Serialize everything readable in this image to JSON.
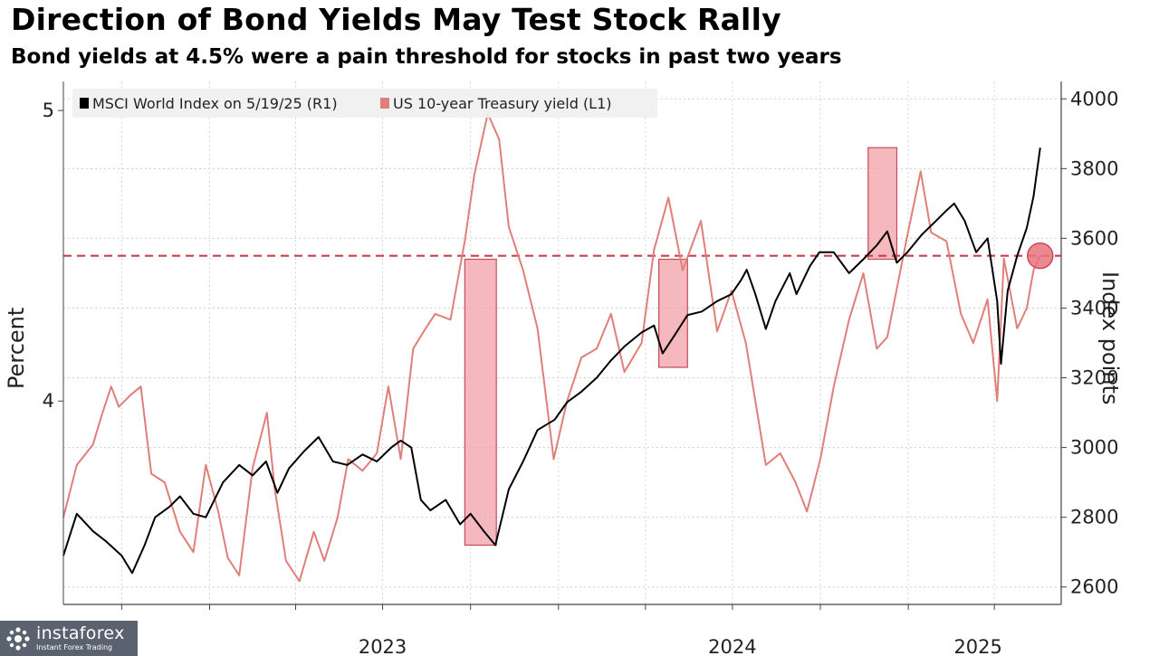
{
  "chart_data": {
    "type": "line",
    "title": "Direction of Bond Yields May Test Stock Rally",
    "subtitle": "Bond yields at 4.5% were a pain threshold for stocks in past two years",
    "ylabel_left": "Percent",
    "ylabel_right": "Index points",
    "x_tick_labels": [
      "2023",
      "2024",
      "2025"
    ],
    "left_axis": {
      "ylim": [
        3.3,
        5.1
      ],
      "ticks": [
        4,
        5
      ]
    },
    "right_axis": {
      "ylim": [
        2550,
        4050
      ],
      "ticks": [
        2600,
        2800,
        3000,
        3200,
        3400,
        3600,
        3800,
        4000
      ]
    },
    "xlim": [
      "2022-08-01",
      "2025-06-10"
    ],
    "threshold": {
      "value": 4.5,
      "axis": "left",
      "style": "dashed",
      "color": "#c8404a"
    },
    "legend_position": "top-left",
    "grid": true,
    "series": [
      {
        "name": "MSCI World Index on 5/19/25 (R1)",
        "axis": "right",
        "color": "#000000",
        "points": [
          [
            "2022-08-01",
            2690
          ],
          [
            "2022-08-15",
            2810
          ],
          [
            "2022-09-01",
            2760
          ],
          [
            "2022-09-15",
            2730
          ],
          [
            "2022-10-01",
            2690
          ],
          [
            "2022-10-12",
            2640
          ],
          [
            "2022-10-25",
            2720
          ],
          [
            "2022-11-05",
            2800
          ],
          [
            "2022-11-20",
            2830
          ],
          [
            "2022-12-01",
            2860
          ],
          [
            "2022-12-15",
            2810
          ],
          [
            "2022-12-28",
            2800
          ],
          [
            "2023-01-15",
            2900
          ],
          [
            "2023-02-01",
            2950
          ],
          [
            "2023-02-15",
            2920
          ],
          [
            "2023-03-01",
            2960
          ],
          [
            "2023-03-13",
            2870
          ],
          [
            "2023-03-25",
            2940
          ],
          [
            "2023-04-10",
            2990
          ],
          [
            "2023-04-25",
            3030
          ],
          [
            "2023-05-10",
            2960
          ],
          [
            "2023-05-25",
            2950
          ],
          [
            "2023-06-10",
            2980
          ],
          [
            "2023-06-25",
            2960
          ],
          [
            "2023-07-10",
            3000
          ],
          [
            "2023-07-20",
            3020
          ],
          [
            "2023-07-31",
            3000
          ],
          [
            "2023-08-10",
            2850
          ],
          [
            "2023-08-20",
            2820
          ],
          [
            "2023-09-05",
            2850
          ],
          [
            "2023-09-20",
            2780
          ],
          [
            "2023-10-01",
            2810
          ],
          [
            "2023-10-15",
            2760
          ],
          [
            "2023-10-27",
            2720
          ],
          [
            "2023-11-10",
            2880
          ],
          [
            "2023-11-25",
            2960
          ],
          [
            "2023-12-10",
            3050
          ],
          [
            "2023-12-28",
            3080
          ],
          [
            "2024-01-10",
            3130
          ],
          [
            "2024-01-25",
            3160
          ],
          [
            "2024-02-10",
            3200
          ],
          [
            "2024-02-25",
            3250
          ],
          [
            "2024-03-10",
            3290
          ],
          [
            "2024-03-28",
            3330
          ],
          [
            "2024-04-10",
            3350
          ],
          [
            "2024-04-19",
            3270
          ],
          [
            "2024-05-01",
            3320
          ],
          [
            "2024-05-15",
            3380
          ],
          [
            "2024-05-30",
            3390
          ],
          [
            "2024-06-15",
            3420
          ],
          [
            "2024-06-30",
            3440
          ],
          [
            "2024-07-10",
            3480
          ],
          [
            "2024-07-16",
            3510
          ],
          [
            "2024-07-25",
            3440
          ],
          [
            "2024-08-05",
            3340
          ],
          [
            "2024-08-15",
            3420
          ],
          [
            "2024-08-30",
            3500
          ],
          [
            "2024-09-06",
            3440
          ],
          [
            "2024-09-20",
            3520
          ],
          [
            "2024-09-30",
            3560
          ],
          [
            "2024-10-15",
            3560
          ],
          [
            "2024-10-31",
            3500
          ],
          [
            "2024-11-15",
            3540
          ],
          [
            "2024-11-29",
            3580
          ],
          [
            "2024-12-10",
            3620
          ],
          [
            "2024-12-20",
            3530
          ],
          [
            "2024-12-31",
            3560
          ],
          [
            "2025-01-15",
            3610
          ],
          [
            "2025-01-30",
            3650
          ],
          [
            "2025-02-10",
            3680
          ],
          [
            "2025-02-18",
            3700
          ],
          [
            "2025-03-01",
            3650
          ],
          [
            "2025-03-13",
            3560
          ],
          [
            "2025-03-25",
            3600
          ],
          [
            "2025-04-04",
            3420
          ],
          [
            "2025-04-08",
            3240
          ],
          [
            "2025-04-15",
            3450
          ],
          [
            "2025-04-25",
            3550
          ],
          [
            "2025-05-05",
            3630
          ],
          [
            "2025-05-12",
            3720
          ],
          [
            "2025-05-19",
            3860
          ]
        ]
      },
      {
        "name": "US 10-year Treasury yield (L1)",
        "axis": "left",
        "color": "#e07f79",
        "points": [
          [
            "2022-08-01",
            3.6
          ],
          [
            "2022-08-15",
            3.78
          ],
          [
            "2022-09-01",
            3.85
          ],
          [
            "2022-09-10",
            3.95
          ],
          [
            "2022-09-20",
            4.05
          ],
          [
            "2022-09-28",
            3.98
          ],
          [
            "2022-10-10",
            4.02
          ],
          [
            "2022-10-21",
            4.05
          ],
          [
            "2022-11-01",
            3.75
          ],
          [
            "2022-11-15",
            3.72
          ],
          [
            "2022-12-01",
            3.55
          ],
          [
            "2022-12-15",
            3.48
          ],
          [
            "2022-12-28",
            3.78
          ],
          [
            "2023-01-10",
            3.62
          ],
          [
            "2023-01-20",
            3.46
          ],
          [
            "2023-02-01",
            3.4
          ],
          [
            "2023-02-15",
            3.77
          ],
          [
            "2023-03-02",
            3.96
          ],
          [
            "2023-03-10",
            3.7
          ],
          [
            "2023-03-22",
            3.45
          ],
          [
            "2023-04-05",
            3.38
          ],
          [
            "2023-04-20",
            3.55
          ],
          [
            "2023-05-01",
            3.45
          ],
          [
            "2023-05-15",
            3.6
          ],
          [
            "2023-05-26",
            3.8
          ],
          [
            "2023-06-10",
            3.76
          ],
          [
            "2023-06-25",
            3.82
          ],
          [
            "2023-07-07",
            4.05
          ],
          [
            "2023-07-20",
            3.8
          ],
          [
            "2023-08-02",
            4.18
          ],
          [
            "2023-08-15",
            4.25
          ],
          [
            "2023-08-25",
            4.3
          ],
          [
            "2023-09-10",
            4.28
          ],
          [
            "2023-09-25",
            4.55
          ],
          [
            "2023-10-05",
            4.78
          ],
          [
            "2023-10-19",
            4.99
          ],
          [
            "2023-10-31",
            4.9
          ],
          [
            "2023-11-10",
            4.6
          ],
          [
            "2023-11-25",
            4.45
          ],
          [
            "2023-12-10",
            4.25
          ],
          [
            "2023-12-27",
            3.8
          ],
          [
            "2024-01-10",
            4.0
          ],
          [
            "2024-01-25",
            4.15
          ],
          [
            "2024-02-10",
            4.18
          ],
          [
            "2024-02-25",
            4.3
          ],
          [
            "2024-03-10",
            4.1
          ],
          [
            "2024-03-28",
            4.2
          ],
          [
            "2024-04-10",
            4.52
          ],
          [
            "2024-04-25",
            4.7
          ],
          [
            "2024-05-10",
            4.45
          ],
          [
            "2024-05-29",
            4.62
          ],
          [
            "2024-06-15",
            4.24
          ],
          [
            "2024-06-30",
            4.38
          ],
          [
            "2024-07-15",
            4.2
          ],
          [
            "2024-08-05",
            3.78
          ],
          [
            "2024-08-20",
            3.82
          ],
          [
            "2024-09-05",
            3.72
          ],
          [
            "2024-09-17",
            3.62
          ],
          [
            "2024-10-01",
            3.8
          ],
          [
            "2024-10-15",
            4.05
          ],
          [
            "2024-10-31",
            4.28
          ],
          [
            "2024-11-15",
            4.44
          ],
          [
            "2024-11-29",
            4.18
          ],
          [
            "2024-12-10",
            4.22
          ],
          [
            "2024-12-31",
            4.57
          ],
          [
            "2025-01-14",
            4.79
          ],
          [
            "2025-01-25",
            4.58
          ],
          [
            "2025-02-10",
            4.55
          ],
          [
            "2025-02-25",
            4.3
          ],
          [
            "2025-03-10",
            4.2
          ],
          [
            "2025-03-25",
            4.35
          ],
          [
            "2025-04-04",
            4.0
          ],
          [
            "2025-04-11",
            4.49
          ],
          [
            "2025-04-25",
            4.25
          ],
          [
            "2025-05-05",
            4.32
          ],
          [
            "2025-05-12",
            4.45
          ],
          [
            "2025-05-19",
            4.5
          ]
        ]
      }
    ],
    "highlight_boxes": [
      {
        "x0": "2023-09-25",
        "x1": "2023-10-28",
        "y0": 2720,
        "y1": 3540,
        "axis": "right"
      },
      {
        "x0": "2024-04-15",
        "x1": "2024-05-15",
        "y0": 3230,
        "y1": 3540,
        "axis": "right"
      },
      {
        "x0": "2024-11-20",
        "x1": "2024-12-20",
        "y0": 3540,
        "y1": 3860,
        "axis": "right"
      }
    ],
    "marker": {
      "x": "2025-05-19",
      "y": 4.5,
      "axis": "left"
    }
  },
  "watermark": {
    "brand": "instaforex",
    "tagline": "Instant Forex Trading"
  }
}
